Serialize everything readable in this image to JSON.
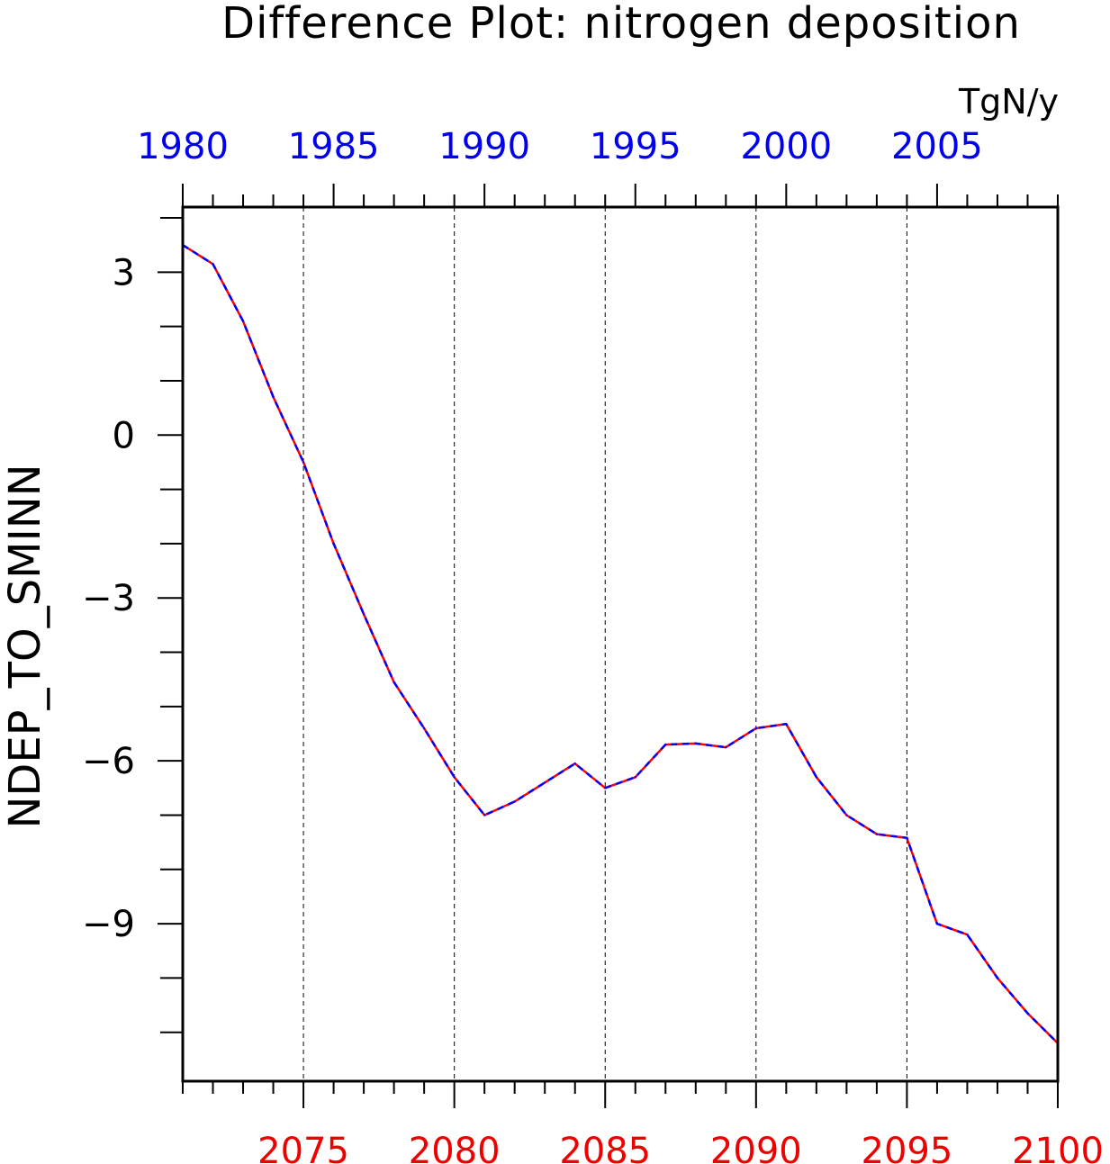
{
  "chart_data": {
    "type": "line",
    "title": "Difference Plot: nitrogen deposition",
    "units": "TgN/y",
    "ylabel": "NDEP_TO_SMINN",
    "xlabel": "",
    "ylim": [
      -11.9,
      4.2
    ],
    "yticks": [
      3,
      0,
      -3,
      -6,
      -9
    ],
    "yticks_minor_step": 1,
    "grid": "vertical dashed lines at each labeled x tick",
    "x_bottom": {
      "range": [
        2071,
        2100
      ],
      "ticks": [
        2075,
        2080,
        2085,
        2090,
        2095,
        2100
      ],
      "tick_labels": [
        "2075",
        "2080",
        "2085",
        "2090",
        "2095",
        "2100"
      ],
      "color": "#ee0000"
    },
    "x_top": {
      "range": [
        1980,
        2009
      ],
      "ticks": [
        1980,
        1985,
        1990,
        1995,
        2000,
        2005
      ],
      "tick_labels": [
        "1980",
        "1985",
        "1990",
        "1995",
        "2000",
        "2005"
      ],
      "color": "#0000ee"
    },
    "x": [
      2071,
      2072,
      2073,
      2074,
      2075,
      2076,
      2077,
      2078,
      2079,
      2080,
      2081,
      2082,
      2083,
      2084,
      2085,
      2086,
      2087,
      2088,
      2089,
      2090,
      2091,
      2092,
      2093,
      2094,
      2095,
      2096,
      2097,
      2098,
      2099,
      2100
    ],
    "series": [
      {
        "color_primary": "#ff0000",
        "color_dash": "#0000ff",
        "style": "red solid with blue dashes overlay",
        "values": [
          3.5,
          3.15,
          2.1,
          0.7,
          -0.5,
          -2.0,
          -3.3,
          -4.55,
          -5.4,
          -6.3,
          -7.0,
          -6.75,
          -6.4,
          -6.05,
          -6.5,
          -6.3,
          -5.7,
          -5.68,
          -5.75,
          -5.4,
          -5.32,
          -6.3,
          -7.0,
          -7.35,
          -7.42,
          -9.0,
          -9.2,
          -10.0,
          -10.65,
          -11.2
        ]
      }
    ]
  }
}
